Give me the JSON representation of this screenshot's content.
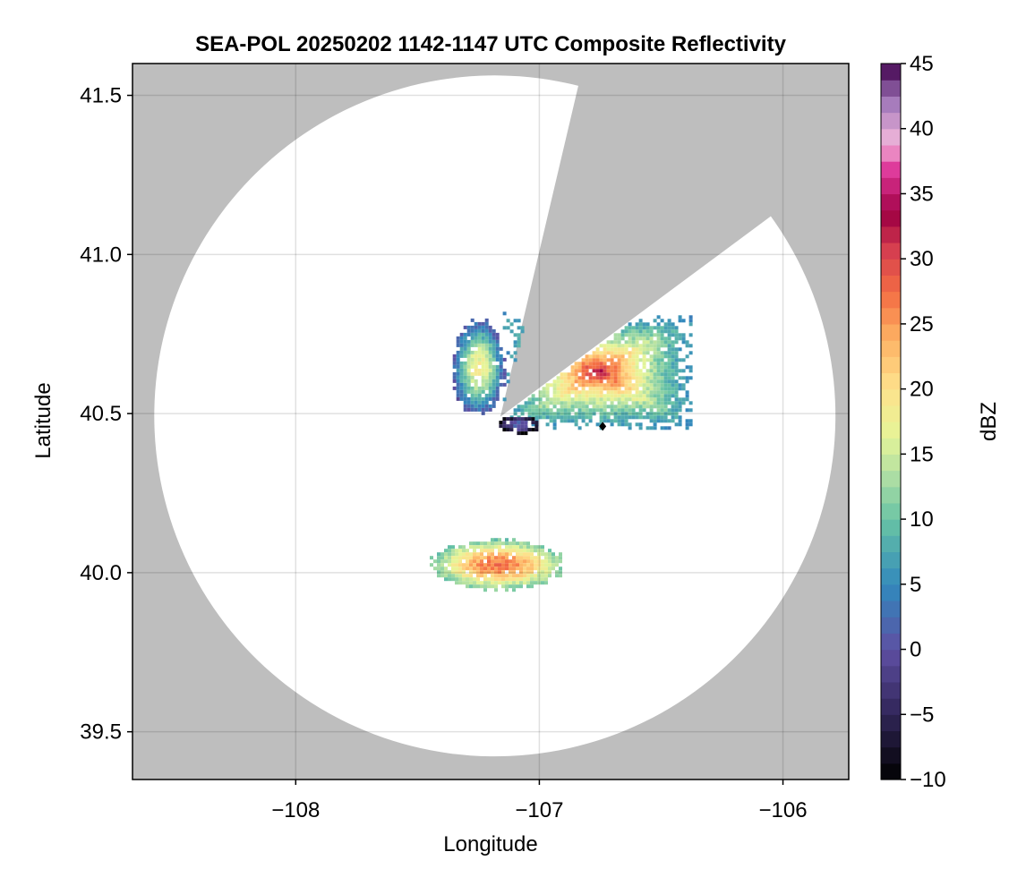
{
  "chart_data": {
    "type": "heatmap",
    "title": "SEA-POL 20250202 1142-1147 UTC Composite Reflectivity",
    "xlabel": "Longitude",
    "ylabel": "Latitude",
    "xlim": [
      -108.67,
      -105.73
    ],
    "ylim": [
      39.35,
      41.6
    ],
    "xticks": [
      -108,
      -107,
      -106
    ],
    "xtick_labels": [
      "−108",
      "−107",
      "−106"
    ],
    "yticks": [
      39.5,
      40.0,
      40.5,
      41.0,
      41.5
    ],
    "ytick_labels": [
      "39.5",
      "40.0",
      "40.5",
      "41.0",
      "41.5"
    ],
    "grid": true,
    "no_data_color": "#bebebe",
    "radar": {
      "center_lon": -107.16,
      "center_lat": 40.49,
      "range_lat_deg": 1.07,
      "blocked_sectors": [
        {
          "from_lon": -106.84,
          "from_lat": 41.53,
          "to_lon": -106.05,
          "to_lat": 41.12
        }
      ]
    },
    "marker": {
      "lon": -106.74,
      "lat": 40.46,
      "symbol": "diamond"
    },
    "echoes": [
      {
        "name": "northeast-cell",
        "lon_range": [
          -107.15,
          -106.38
        ],
        "lat_range": [
          40.41,
          40.82
        ],
        "dbz_min": 5,
        "dbz_max": 33
      },
      {
        "name": "northwest-fringe",
        "lon_range": [
          -107.37,
          -107.14
        ],
        "lat_range": [
          40.49,
          40.81
        ],
        "dbz_min": 0,
        "dbz_max": 18
      },
      {
        "name": "near-radar-weak",
        "lon_range": [
          -107.18,
          -107.0
        ],
        "lat_range": [
          40.44,
          40.5
        ],
        "dbz_min": -10,
        "dbz_max": 2
      },
      {
        "name": "southern-band",
        "lon_range": [
          -107.45,
          -106.9
        ],
        "lat_range": [
          39.94,
          40.12
        ],
        "dbz_min": 10,
        "dbz_max": 27
      }
    ],
    "colorbar": {
      "label": "dBZ",
      "min": -10,
      "max": 45,
      "ticks": [
        -10,
        -5,
        0,
        5,
        10,
        15,
        20,
        25,
        30,
        35,
        40,
        45
      ],
      "tick_labels": [
        "−10",
        "−5",
        "0",
        "5",
        "10",
        "15",
        "20",
        "25",
        "30",
        "35",
        "40",
        "45"
      ],
      "levels": 44,
      "colors": [
        "#000000",
        "#35295f",
        "#5e4fa2",
        "#3288bd",
        "#66c2a5",
        "#abdda4",
        "#e6f598",
        "#fee08b",
        "#fdae61",
        "#f46d43",
        "#d53e4f",
        "#9e0142",
        "#dd3497",
        "#f1b6da",
        "#9e74b8",
        "#40004b"
      ],
      "color_stops": [
        0,
        0.1,
        0.18,
        0.27,
        0.36,
        0.42,
        0.48,
        0.55,
        0.62,
        0.68,
        0.74,
        0.79,
        0.85,
        0.89,
        0.95,
        1.0
      ]
    }
  }
}
